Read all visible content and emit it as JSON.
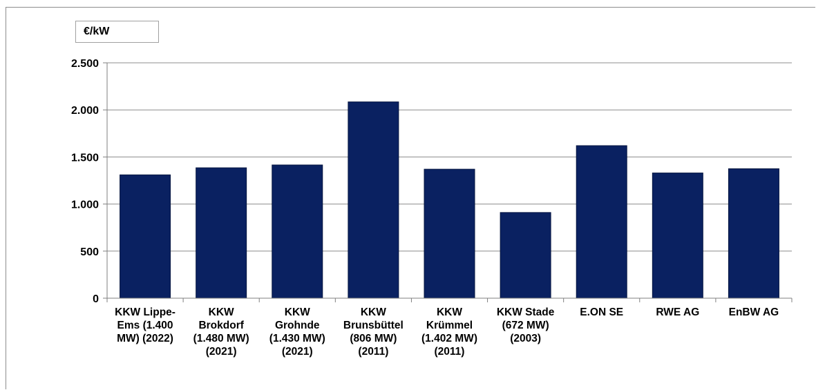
{
  "chart_data": {
    "type": "bar",
    "unit_label": "€/kW",
    "categories": [
      [
        "KKW Lippe-",
        "Ems (1.400",
        "MW) (2022)"
      ],
      [
        "KKW",
        "Brokdorf",
        "(1.480 MW)",
        "(2021)"
      ],
      [
        "KKW",
        "Grohnde",
        "(1.430 MW)",
        "(2021)"
      ],
      [
        "KKW",
        "Brunsbüttel",
        "(806 MW)",
        "(2011)"
      ],
      [
        "KKW",
        "Krümmel",
        "(1.402 MW)",
        "(2011)"
      ],
      [
        "KKW Stade",
        "(672 MW)",
        "(2003)"
      ],
      [
        "E.ON SE"
      ],
      [
        "RWE AG"
      ],
      [
        "EnBW AG"
      ]
    ],
    "values": [
      1310,
      1385,
      1415,
      2085,
      1370,
      910,
      1620,
      1330,
      1375
    ],
    "ylim": [
      0,
      2500
    ],
    "yticks": [
      0,
      500,
      1000,
      1500,
      2000,
      2500
    ],
    "ytick_labels": [
      "0",
      "500",
      "1.000",
      "1.500",
      "2.000",
      "2.500"
    ],
    "grid": true,
    "colors": {
      "bar": "#0a2161",
      "grid": "#8c8c8c",
      "axis": "#7f7f7f"
    }
  }
}
